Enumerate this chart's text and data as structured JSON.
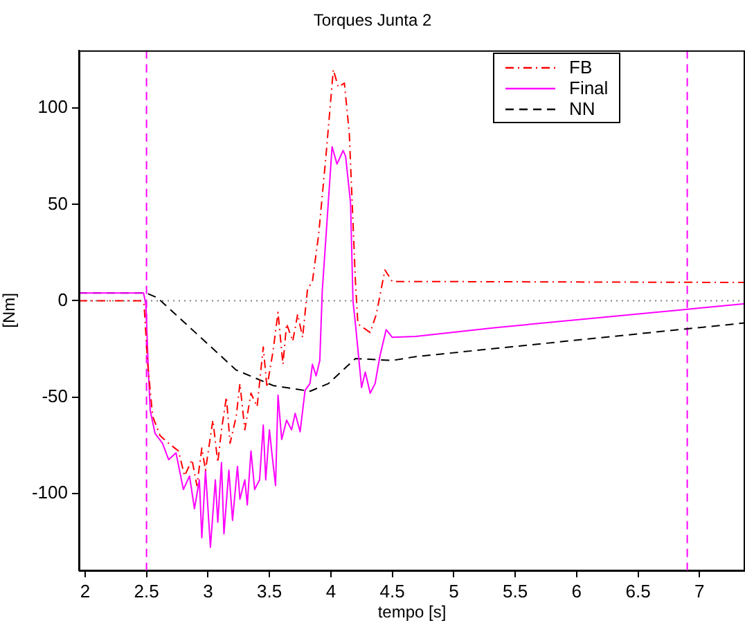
{
  "chart_data": {
    "type": "line",
    "title": "Torques Junta 2",
    "xlabel": "tempo [s]",
    "ylabel": "[Nm]",
    "xlim": [
      1.95,
      7.37
    ],
    "xticks": [
      2,
      2.5,
      3,
      3.5,
      4,
      4.5,
      5,
      5.5,
      6,
      6.5,
      7
    ],
    "ylim": [
      -140,
      130
    ],
    "yticks": [
      -100,
      -50,
      0,
      50,
      100
    ],
    "grid": false,
    "legend": "top right",
    "marker": "none",
    "ref_lines": [
      {
        "axis": "x",
        "value": 2.5,
        "color": "#ff00ff",
        "line_style": "dashed"
      },
      {
        "axis": "x",
        "value": 6.9,
        "color": "#ff00ff",
        "line_style": "dashed"
      },
      {
        "axis": "y",
        "value": 0,
        "color": "#808080",
        "line_style": "dotted"
      }
    ],
    "series": [
      {
        "name": "FB",
        "color": "#ff0000",
        "line_style": "dashdot",
        "x": [
          1.95,
          2.46,
          2.48,
          2.51,
          2.55,
          2.61,
          2.68,
          2.76,
          2.81,
          2.87,
          2.91,
          2.95,
          2.98,
          3.04,
          3.08,
          3.11,
          3.15,
          3.18,
          3.23,
          3.26,
          3.3,
          3.35,
          3.4,
          3.45,
          3.48,
          3.53,
          3.57,
          3.61,
          3.64,
          3.69,
          3.73,
          3.77,
          3.81,
          3.85,
          3.9,
          3.96,
          4.02,
          4.06,
          4.11,
          4.15,
          4.2,
          4.22,
          4.32,
          4.37,
          4.44,
          4.5,
          4.69,
          7.37
        ],
        "values": [
          0,
          0,
          -2,
          -33,
          -60,
          -70,
          -74,
          -78,
          -91,
          -82.5,
          -96,
          -76.5,
          -88,
          -62,
          -84,
          -67,
          -50,
          -74,
          -60,
          -43,
          -67,
          -48,
          -55,
          -24,
          -45,
          -26,
          -6,
          -33,
          -12,
          -21,
          -7,
          -19,
          6,
          10,
          34,
          75,
          120,
          111,
          113,
          87,
          10,
          -12,
          -16.5,
          -7,
          16,
          10,
          10,
          9.5
        ]
      },
      {
        "name": "Final",
        "color": "#ff00ff",
        "line_style": "solid",
        "x": [
          1.95,
          2.476,
          2.495,
          2.515,
          2.53,
          2.57,
          2.63,
          2.68,
          2.74,
          2.8,
          2.85,
          2.89,
          2.93,
          2.95,
          2.98,
          3.02,
          3.06,
          3.08,
          3.11,
          3.13,
          3.17,
          3.2,
          3.24,
          3.26,
          3.3,
          3.32,
          3.35,
          3.38,
          3.42,
          3.45,
          3.47,
          3.5,
          3.52,
          3.55,
          3.57,
          3.6,
          3.64,
          3.68,
          3.71,
          3.75,
          3.79,
          3.83,
          3.85,
          3.88,
          3.91,
          3.93,
          4.01,
          4.05,
          4.1,
          4.12,
          4.16,
          4.18,
          4.2,
          4.25,
          4.28,
          4.32,
          4.36,
          4.4,
          4.45,
          4.5,
          4.69,
          5.33,
          6.89,
          7.37
        ],
        "values": [
          4,
          4,
          -2,
          -36,
          -57,
          -69,
          -74,
          -82.5,
          -79,
          -98,
          -91,
          -108,
          -93,
          -123,
          -88,
          -128,
          -93,
          -115,
          -84,
          -121,
          -88,
          -114,
          -86,
          -103,
          -93,
          -106,
          -78,
          -98,
          -93,
          -64.5,
          -93,
          -67,
          -79,
          -96,
          -49,
          -72,
          -62,
          -67,
          -58.5,
          -68,
          -46.5,
          -43,
          -33,
          -39,
          -31,
          5,
          80,
          71,
          78,
          75,
          51,
          0,
          -12,
          -45,
          -37,
          -48,
          -43,
          -28.5,
          -15,
          -19,
          -18.5,
          -14,
          -4.5,
          -1.5
        ]
      },
      {
        "name": "NN",
        "color": "#000000",
        "line_style": "dashed",
        "x": [
          1.95,
          2.5,
          2.59,
          3.23,
          3.53,
          3.83,
          3.98,
          4.2,
          4.5,
          4.69,
          7.37
        ],
        "values": [
          4,
          4,
          1.5,
          -36,
          -44,
          -47,
          -43,
          -30,
          -31,
          -29,
          -11.5
        ]
      }
    ]
  }
}
